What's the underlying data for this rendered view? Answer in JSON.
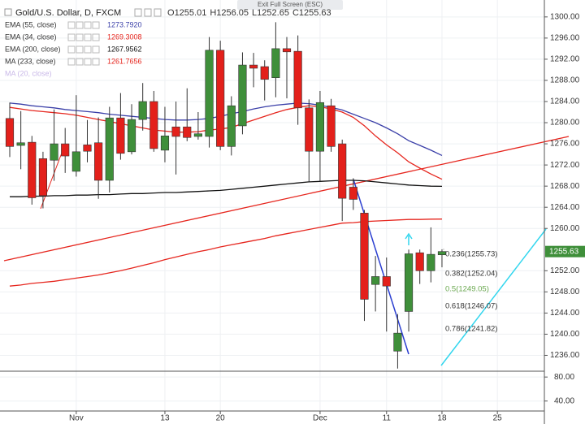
{
  "chart_data": {
    "type": "candlestick",
    "symbol": "Gold/U.S. Dollar, D, FXCM",
    "ohlc_letters": [
      "O",
      "H",
      "L",
      "C"
    ],
    "exit_button": "Exit Full Screen (ESC)",
    "up_color": "#3f8f3a",
    "down_color": "#e3201b",
    "wick_color": "#333333",
    "grid": true,
    "open": [
      1280.8,
      1275.7,
      1276.3,
      1273.2,
      1272.9,
      1276,
      1270.8,
      1275.8,
      1276.2,
      1269.1,
      1280.9,
      1274.5,
      1280.6,
      1284,
      1274.8,
      1279.2,
      1279.2,
      1277.4,
      1277.4,
      1293.7,
      1275.5,
      1279.4,
      1290.9,
      1290.6,
      1288.5,
      1294,
      1293.5,
      1282.8,
      1274.6,
      1283.2,
      1276,
      1267.8,
      1262.9,
      1249.4,
      1250.9,
      1236.8,
      1244.3,
      1255.4,
      1252,
      1255.01
    ],
    "high": [
      1283.8,
      1282.2,
      1277.5,
      1274.5,
      1282.5,
      1279,
      1285.2,
      1280.5,
      1281,
      1283,
      1285.6,
      1283.5,
      1287.5,
      1286,
      1283,
      1284,
      1286.5,
      1282,
      1296.2,
      1295.5,
      1285,
      1293.3,
      1293.2,
      1291.8,
      1299,
      1296.2,
      1296.5,
      1284.4,
      1286,
      1284.5,
      1276.8,
      1269.5,
      1263.5,
      1254.8,
      1254.5,
      1243.8,
      1256,
      1256,
      1260.2,
      1256.05
    ],
    "low": [
      1273.5,
      1271.2,
      1264.5,
      1263.8,
      1269,
      1270.5,
      1269.8,
      1272.5,
      1265.6,
      1266.8,
      1273,
      1274,
      1278.5,
      1274.5,
      1272.5,
      1270.2,
      1276.5,
      1276.8,
      1275.3,
      1274.8,
      1273.8,
      1277.8,
      1286.7,
      1284.2,
      1284.8,
      1284.6,
      1279.6,
      1268.7,
      1268.9,
      1274.5,
      1261.4,
      1263.5,
      1242.5,
      1244.3,
      1240.5,
      1233.5,
      1240.5,
      1249.5,
      1249.8,
      1252.65
    ],
    "close": [
      1275.5,
      1276.2,
      1265.8,
      1266.2,
      1276,
      1273.7,
      1274.5,
      1274.6,
      1269.1,
      1280.9,
      1274.2,
      1280.6,
      1284,
      1275.1,
      1277.5,
      1277.4,
      1277.2,
      1277.9,
      1293.7,
      1275.5,
      1283.2,
      1290.9,
      1290.3,
      1288.2,
      1294,
      1293.4,
      1282.8,
      1274.6,
      1283.8,
      1275.5,
      1265.7,
      1265.5,
      1246.6,
      1250.9,
      1249.1,
      1240.2,
      1255.2,
      1252,
      1255.1,
      1255.63
    ],
    "series": [
      {
        "name": "EMA (55, close)",
        "color": "#3a3fa8",
        "value_label": "1273.7920",
        "values": [
          1283.7,
          1283.5,
          1283.2,
          1283,
          1282.8,
          1282.5,
          1282.3,
          1282.1,
          1281.9,
          1281.6,
          1281.4,
          1281.2,
          1281,
          1280.8,
          1280.6,
          1280.5,
          1280.5,
          1280.6,
          1280.8,
          1281.2,
          1281.7,
          1282.1,
          1282.6,
          1283,
          1283.3,
          1283.5,
          1283.7,
          1283.6,
          1283.3,
          1282.9,
          1282.4,
          1281.6,
          1280.8,
          1280,
          1279,
          1277.9,
          1276.6,
          1275.7,
          1274.8,
          1273.792
        ]
      },
      {
        "name": "EMA (34, close)",
        "color": "#e6261e",
        "value_label": "1269.3008",
        "values": [
          1282.9,
          1282.6,
          1282.3,
          1282.1,
          1281.9,
          1281.7,
          1281.4,
          1281,
          1280.6,
          1280.2,
          1279.8,
          1279.4,
          1279,
          1278.6,
          1278.4,
          1278.2,
          1278.2,
          1278.3,
          1278.6,
          1278.8,
          1279.1,
          1279.8,
          1280.5,
          1281.2,
          1281.9,
          1282.5,
          1282.9,
          1283.2,
          1283,
          1282.6,
          1282,
          1281,
          1279.4,
          1277.5,
          1275.8,
          1274.3,
          1272.6,
          1271.4,
          1270.3,
          1269.3008
        ]
      },
      {
        "name": "EMA (200, close)",
        "color": "#111111",
        "value_label": "1267.9562",
        "values": [
          1266,
          1266,
          1266.1,
          1266.1,
          1266.2,
          1266.2,
          1266.3,
          1266.3,
          1266.4,
          1266.4,
          1266.5,
          1266.6,
          1266.6,
          1266.7,
          1266.8,
          1266.8,
          1266.9,
          1267,
          1267.1,
          1267.2,
          1267.4,
          1267.6,
          1267.8,
          1268,
          1268.2,
          1268.4,
          1268.6,
          1268.8,
          1268.9,
          1269,
          1269.1,
          1269.1,
          1269,
          1268.8,
          1268.6,
          1268.4,
          1268.2,
          1268.1,
          1268,
          1267.9562
        ]
      },
      {
        "name": "MA (233, close)",
        "color": "#e6261e",
        "value_label": "1261.7656",
        "values": [
          1249.1,
          1249.3,
          1249.6,
          1249.8,
          1250,
          1250.3,
          1250.6,
          1250.9,
          1251.2,
          1251.6,
          1252,
          1252.5,
          1253,
          1253.5,
          1254.1,
          1254.6,
          1255.1,
          1255.6,
          1256,
          1256.5,
          1256.9,
          1257.3,
          1257.7,
          1258.1,
          1258.6,
          1259,
          1259.4,
          1259.8,
          1260.2,
          1260.6,
          1261,
          1261.1,
          1261.3,
          1261.4,
          1261.5,
          1261.6,
          1261.7,
          1261.7,
          1261.75,
          1261.7656
        ]
      }
    ],
    "hidden_indicator": "MA (20, close)",
    "fib_labels": [
      {
        "text": "0.236(1255.73)",
        "color": "#333333"
      },
      {
        "text": "0.382(1252.04)",
        "color": "#333333"
      },
      {
        "text": "0.5(1249.05)",
        "color": "#6aa84f"
      },
      {
        "text": "0.618(1246.07)",
        "color": "#333333"
      },
      {
        "text": "0.786(1241.82)",
        "color": "#333333"
      }
    ],
    "xlim": [
      -0.88,
      48.24
    ],
    "xticks": [
      {
        "value": 6,
        "label": "Nov"
      },
      {
        "value": 14,
        "label": "13"
      },
      {
        "value": 19,
        "label": "20"
      },
      {
        "value": 28,
        "label": "Dec"
      },
      {
        "value": 34,
        "label": "11"
      },
      {
        "value": 39,
        "label": "18"
      },
      {
        "value": 44,
        "label": "25"
      }
    ],
    "ylim": [
      1233,
      1303.2
    ],
    "yticks": [
      {
        "value": 1236,
        "label": "1236.00"
      },
      {
        "value": 1240,
        "label": "1240.00"
      },
      {
        "value": 1244,
        "label": "1244.00"
      },
      {
        "value": 1248,
        "label": "1248.00"
      },
      {
        "value": 1252,
        "label": "1252.00"
      },
      {
        "value": 1260,
        "label": "1260.00"
      },
      {
        "value": 1264,
        "label": "1264.00"
      },
      {
        "value": 1268,
        "label": "1268.00"
      },
      {
        "value": 1272,
        "label": "1272.00"
      },
      {
        "value": 1276,
        "label": "1276.00"
      },
      {
        "value": 1280,
        "label": "1280.00"
      },
      {
        "value": 1284,
        "label": "1284.00"
      },
      {
        "value": 1288,
        "label": "1288.00"
      },
      {
        "value": 1292,
        "label": "1292.00"
      },
      {
        "value": 1296,
        "label": "1296.00"
      },
      {
        "value": 1300,
        "label": "1300.00"
      }
    ],
    "y2lim": [
      23.4,
      89.7
    ],
    "y2ticks": [
      {
        "value": 80,
        "label": "80.00"
      },
      {
        "value": 40,
        "label": "40.00"
      }
    ]
  }
}
